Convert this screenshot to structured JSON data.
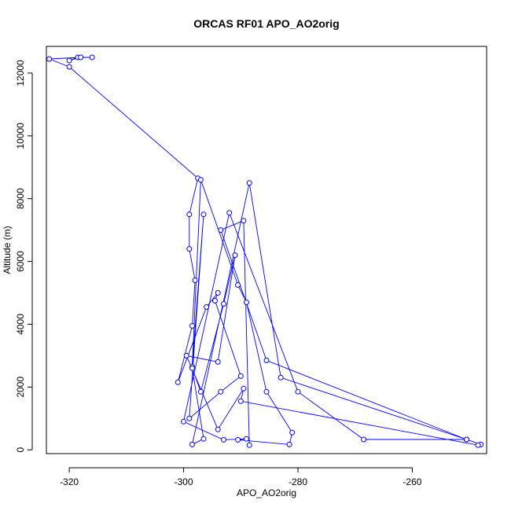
{
  "chart_data": {
    "type": "line",
    "title": "ORCAS RF01 APO_AO2orig",
    "xlabel": "APO_AO2orig",
    "ylabel": "Altitude (m)",
    "xlim": [
      -324,
      -247
    ],
    "ylim": [
      -120,
      12850
    ],
    "xticks": [
      -320,
      -300,
      -280,
      -260
    ],
    "yticks": [
      0,
      2000,
      4000,
      6000,
      8000,
      10000,
      12000
    ],
    "grid": false,
    "legend": "none",
    "colors": {
      "series": "#0000ff",
      "axes": "#000000"
    },
    "series": [
      {
        "x": [
          -316.0,
          -318.5,
          -320.0,
          -318.0,
          -323.5,
          -320.0,
          -297.5,
          -299.0,
          -299.0,
          -298.0,
          -298.5,
          -301.0,
          -296.0,
          -294.0,
          -294.5,
          -290.0,
          -293.5,
          -299.0,
          -296.5,
          -298.5,
          -297.0,
          -290.5,
          -289.0,
          -285.5,
          -281.0,
          -281.5,
          -290.5,
          -289.0,
          -293.0,
          -300.0,
          -292.0,
          -280.0,
          -268.5,
          -250.5,
          -248.0,
          -248.5,
          -290.0,
          -289.5,
          -294.0,
          -299.5,
          -294.0,
          -291.0,
          -293.0,
          -297.0,
          -298.5,
          -296.5,
          -298.5,
          -288.5,
          -283.0,
          -250.5,
          -285.5,
          -293.5,
          -289.5,
          -288.5
        ],
        "y": [
          12500,
          12500,
          12400,
          12500,
          12450,
          12200,
          8650,
          7500,
          6400,
          5400,
          3950,
          2150,
          4550,
          5000,
          4750,
          2350,
          1850,
          1000,
          7500,
          2650,
          8600,
          5250,
          4700,
          1850,
          550,
          170,
          320,
          350,
          320,
          900,
          7550,
          1850,
          330,
          330,
          170,
          150,
          1550,
          1950,
          650,
          3000,
          2800,
          6200,
          4650,
          1850,
          2600,
          350,
          170,
          8500,
          2300,
          330,
          2850,
          7000,
          7300,
          150
        ]
      }
    ]
  }
}
